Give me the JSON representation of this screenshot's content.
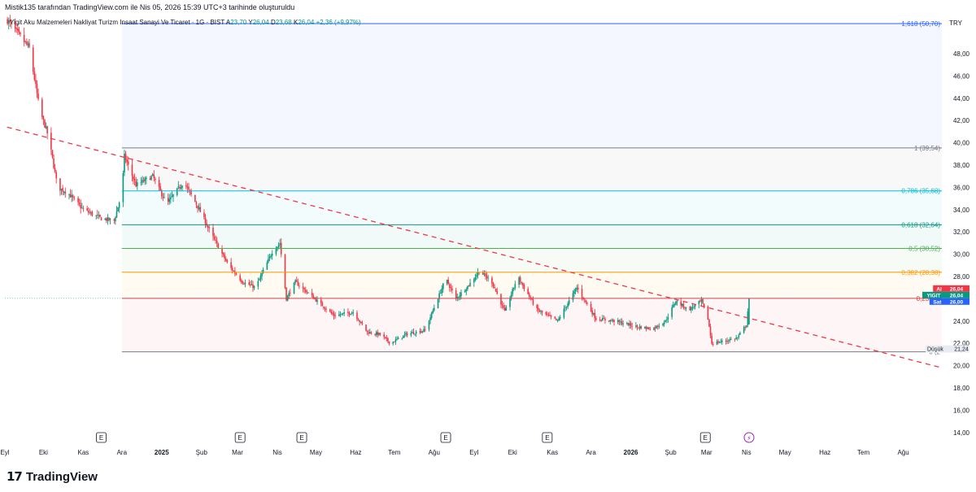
{
  "header": {
    "watermark": "Mistik135 tarafından TradingView.com ile Nis 05, 2026 15:39 UTC+3 tarihinde oluşturuldu",
    "symbol_line": "Yigit Aku Malzemeleri Nakliyat Turizm Insaat Sanayi Ve Ticaret · 1G · BIST",
    "ohlc": {
      "o_label": "A",
      "o": "23,70",
      "h_label": "Y",
      "h": "26,04",
      "l_label": "D",
      "l": "23,68",
      "c_label": "K",
      "c": "26,04",
      "change": "+2,36 (+9,97%)"
    }
  },
  "branding": {
    "mark": "17",
    "name": "TradingView"
  },
  "colors": {
    "up": "#089981",
    "down": "#f23645",
    "trendline": "#f23645",
    "accent": "#2962ff",
    "fib": {
      "1.618": "#2962ff",
      "1": "#787b86",
      "0.786": "#00bcd4",
      "0.618": "#089981",
      "0.5": "#4caf50",
      "0.382": "#ff9800",
      "0.236": "#f23645",
      "0": "#787b86"
    }
  },
  "chart_data": {
    "type": "candlestick",
    "currency": "TRY",
    "y_axis": {
      "min": 13.4,
      "max": 51.5,
      "ticks": [
        14,
        16,
        18,
        20,
        22,
        24,
        26,
        28,
        30,
        32,
        34,
        36,
        38,
        40,
        42,
        44,
        46,
        48
      ],
      "tick_labels": [
        "14,00",
        "16,00",
        "18,00",
        "20,00",
        "22,00",
        "24,00",
        "26,00",
        "28,00",
        "30,00",
        "32,00",
        "34,00",
        "36,00",
        "38,00",
        "40,00",
        "42,00",
        "44,00",
        "46,00",
        "48,00"
      ]
    },
    "x_axis": {
      "start": "2024-09-01",
      "end": "2026-08-31",
      "ticks": [
        {
          "label": "Eyl",
          "date": "2024-09-01"
        },
        {
          "label": "Eki",
          "date": "2024-10-01"
        },
        {
          "label": "Kas",
          "date": "2024-11-01"
        },
        {
          "label": "Ara",
          "date": "2024-12-01"
        },
        {
          "label": "2025",
          "date": "2025-01-01",
          "bold": true
        },
        {
          "label": "Şub",
          "date": "2025-02-01"
        },
        {
          "label": "Mar",
          "date": "2025-03-01"
        },
        {
          "label": "Nis",
          "date": "2025-04-01"
        },
        {
          "label": "May",
          "date": "2025-05-01"
        },
        {
          "label": "Haz",
          "date": "2025-06-01"
        },
        {
          "label": "Tem",
          "date": "2025-07-01"
        },
        {
          "label": "Ağu",
          "date": "2025-08-01"
        },
        {
          "label": "Eyl",
          "date": "2025-09-01"
        },
        {
          "label": "Eki",
          "date": "2025-10-01"
        },
        {
          "label": "Kas",
          "date": "2025-11-01"
        },
        {
          "label": "Ara",
          "date": "2025-12-01"
        },
        {
          "label": "2026",
          "date": "2026-01-01",
          "bold": true
        },
        {
          "label": "Şub",
          "date": "2026-02-01"
        },
        {
          "label": "Mar",
          "date": "2026-03-01"
        },
        {
          "label": "Nis",
          "date": "2026-04-01"
        },
        {
          "label": "May",
          "date": "2026-05-01"
        },
        {
          "label": "Haz",
          "date": "2026-06-01"
        },
        {
          "label": "Tem",
          "date": "2026-07-01"
        },
        {
          "label": "Ağu",
          "date": "2026-08-01"
        }
      ]
    },
    "price_path": [
      {
        "date": "2024-09-03",
        "price": 51.0
      },
      {
        "date": "2024-09-20",
        "price": 48.5
      },
      {
        "date": "2024-09-28",
        "price": 43.0
      },
      {
        "date": "2024-10-05",
        "price": 40.5
      },
      {
        "date": "2024-10-12",
        "price": 36.0
      },
      {
        "date": "2024-10-20",
        "price": 35.5
      },
      {
        "date": "2024-11-01",
        "price": 34.0
      },
      {
        "date": "2024-11-15",
        "price": 33.2
      },
      {
        "date": "2024-11-25",
        "price": 33.0
      },
      {
        "date": "2024-12-01",
        "price": 35.5
      },
      {
        "date": "2024-12-03",
        "price": 38.8
      },
      {
        "date": "2024-12-12",
        "price": 36.2
      },
      {
        "date": "2024-12-25",
        "price": 37.0
      },
      {
        "date": "2025-01-05",
        "price": 34.5
      },
      {
        "date": "2025-01-18",
        "price": 36.5
      },
      {
        "date": "2025-01-28",
        "price": 34.5
      },
      {
        "date": "2025-02-10",
        "price": 31.5
      },
      {
        "date": "2025-02-22",
        "price": 29.0
      },
      {
        "date": "2025-03-05",
        "price": 27.5
      },
      {
        "date": "2025-03-15",
        "price": 27.0
      },
      {
        "date": "2025-03-28",
        "price": 30.2
      },
      {
        "date": "2025-04-03",
        "price": 31.0
      },
      {
        "date": "2025-04-08",
        "price": 26.0
      },
      {
        "date": "2025-04-15",
        "price": 27.5
      },
      {
        "date": "2025-04-28",
        "price": 26.2
      },
      {
        "date": "2025-05-15",
        "price": 24.5
      },
      {
        "date": "2025-05-30",
        "price": 24.8
      },
      {
        "date": "2025-06-10",
        "price": 23.0
      },
      {
        "date": "2025-06-20",
        "price": 22.8
      },
      {
        "date": "2025-06-28",
        "price": 22.0
      },
      {
        "date": "2025-07-10",
        "price": 22.8
      },
      {
        "date": "2025-07-25",
        "price": 23.2
      },
      {
        "date": "2025-08-02",
        "price": 25.5
      },
      {
        "date": "2025-08-10",
        "price": 27.8
      },
      {
        "date": "2025-08-18",
        "price": 26.0
      },
      {
        "date": "2025-08-30",
        "price": 27.5
      },
      {
        "date": "2025-09-05",
        "price": 28.5
      },
      {
        "date": "2025-09-15",
        "price": 27.5
      },
      {
        "date": "2025-09-25",
        "price": 24.8
      },
      {
        "date": "2025-10-05",
        "price": 28.0
      },
      {
        "date": "2025-10-20",
        "price": 25.0
      },
      {
        "date": "2025-11-05",
        "price": 24.0
      },
      {
        "date": "2025-11-20",
        "price": 27.0
      },
      {
        "date": "2025-12-05",
        "price": 24.2
      },
      {
        "date": "2025-12-20",
        "price": 24.0
      },
      {
        "date": "2026-01-05",
        "price": 23.5
      },
      {
        "date": "2026-01-18",
        "price": 23.3
      },
      {
        "date": "2026-01-28",
        "price": 24.0
      },
      {
        "date": "2026-02-05",
        "price": 25.8
      },
      {
        "date": "2026-02-15",
        "price": 25.0
      },
      {
        "date": "2026-02-25",
        "price": 25.8
      },
      {
        "date": "2026-03-02",
        "price": 24.2
      },
      {
        "date": "2026-03-05",
        "price": 22.0
      },
      {
        "date": "2026-03-15",
        "price": 22.2
      },
      {
        "date": "2026-03-25",
        "price": 22.5
      },
      {
        "date": "2026-04-01",
        "price": 23.7
      },
      {
        "date": "2026-04-03",
        "price": 26.04
      }
    ],
    "trendline": {
      "style": "dashed",
      "points": [
        {
          "date": "2024-08-27",
          "price": 41.6
        },
        {
          "date": "2026-08-31",
          "price": 19.8
        }
      ]
    },
    "fibonacci": {
      "start_date": "2024-12-01",
      "levels": [
        {
          "ratio": "1.618",
          "label": "1,618 (50,70)",
          "price": 50.7
        },
        {
          "ratio": "1",
          "label": "1 (39,54)",
          "price": 39.54
        },
        {
          "ratio": "0.786",
          "label": "0,786 (35,68)",
          "price": 35.68
        },
        {
          "ratio": "0.618",
          "label": "0,618 (32,64)",
          "price": 32.64
        },
        {
          "ratio": "0.5",
          "label": "0,5 (30,52)",
          "price": 30.52
        },
        {
          "ratio": "0.382",
          "label": "0,382 (28,38)",
          "price": 28.38
        },
        {
          "ratio": "0.236",
          "label": "0,236 (2",
          "price": 26.04
        },
        {
          "ratio": "0",
          "label": "0 (2",
          "price": 21.24
        }
      ]
    },
    "price_tags": [
      {
        "label": "Al",
        "value": "26,04",
        "price": 26.04,
        "color": "#f23645",
        "slot": 0
      },
      {
        "label": "YIGIT",
        "value": "26,04",
        "price": 26.04,
        "color": "#089981",
        "slot": 1
      },
      {
        "label": "Sat",
        "value": "26,00",
        "price": 26.0,
        "color": "#2962ff",
        "slot": 2
      },
      {
        "label": "Düşük",
        "value": "21,24",
        "price": 21.24,
        "color": "#e8ecf2",
        "slot": 3
      }
    ],
    "events": {
      "earnings": {
        "symbol": "E",
        "dates": [
          "2024-11-15",
          "2025-03-03",
          "2025-04-20",
          "2025-08-10",
          "2025-10-28",
          "2026-02-28"
        ]
      },
      "dividend": {
        "symbol": "⚡",
        "date": "2026-04-03"
      }
    }
  }
}
